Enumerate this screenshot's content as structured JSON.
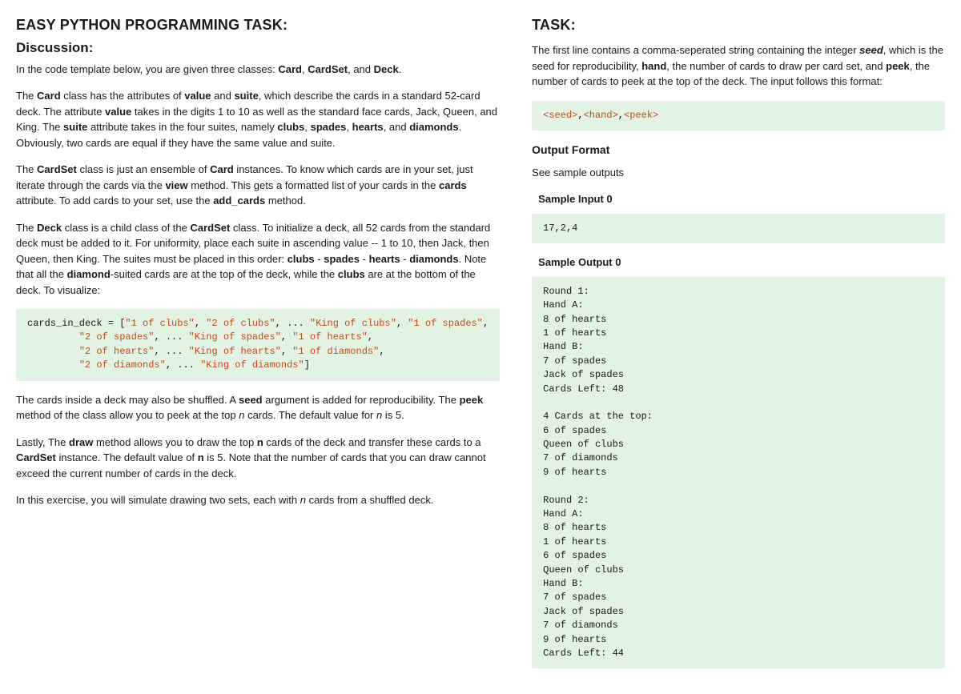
{
  "left": {
    "heading_main": "EASY PYTHON PROGRAMMING TASK:",
    "heading_sub": "Discussion:",
    "p1_pre": "In the code template below, you are given three classes: ",
    "p1_c1": "Card",
    "p1_s1": ", ",
    "p1_c2": "CardSet",
    "p1_s2": ", and ",
    "p1_c3": "Deck",
    "p1_post": ".",
    "p2_a": "The ",
    "p2_b1": "Card",
    "p2_b": " class has the attributes of ",
    "p2_b2": "value",
    "p2_c": " and ",
    "p2_b3": "suite",
    "p2_d": ", which describe the cards in a standard 52-card deck. The attribute ",
    "p2_b4": "value",
    "p2_e": " takes in the digits 1 to 10 as well as the standard face cards, Jack, Queen, and King. The ",
    "p2_b5": "suite",
    "p2_f": " attribute takes in the four suites, namely ",
    "p2_b6": "clubs",
    "p2_s1": ", ",
    "p2_b7": "spades",
    "p2_s2": ", ",
    "p2_b8": "hearts",
    "p2_s3": ", and ",
    "p2_b9": "diamonds",
    "p2_g": ". Obviously, two cards are equal if they have the same value and suite.",
    "p3_a": "The ",
    "p3_b1": "CardSet",
    "p3_b": " class is just an ensemble of ",
    "p3_b2": "Card",
    "p3_c": " instances. To know which cards are in your set, just iterate through the cards via the ",
    "p3_b3": "view",
    "p3_d": " method. This gets a formatted list of your cards in the ",
    "p3_b4": "cards",
    "p3_e": " attribute. To add cards to your set, use the ",
    "p3_b5": "add_cards",
    "p3_f": " method.",
    "p4_a": "The ",
    "p4_b1": "Deck",
    "p4_b": " class is a child class of the ",
    "p4_b2": "CardSet",
    "p4_c": " class. To initialize a deck, all 52 cards from the standard deck must be added to it. For uniformity, place each suite in ascending value -- 1 to 10, then Jack, then Queen, then King. The suites must be placed in this order: ",
    "p4_b3": "clubs",
    "p4_s1": " - ",
    "p4_b4": "spades",
    "p4_s2": " - ",
    "p4_b5": "hearts",
    "p4_s3": " - ",
    "p4_b6": "diamonds",
    "p4_d": ". Note that all the ",
    "p4_b7": "diamond",
    "p4_e": "-suited cards are at the top of the deck, while the ",
    "p4_b8": "clubs",
    "p4_f": " are at the bottom of the deck. To visualize:",
    "code1": {
      "l1a": "cards_in_deck = [",
      "l1b": "\"1 of clubs\"",
      "l1c": ", ",
      "l1d": "\"2 of clubs\"",
      "l1e": ", ... ",
      "l1f": "\"King of clubs\"",
      "l1g": ", ",
      "l1h": "\"1 of spades\"",
      "l1i": ",",
      "l2_indent": "         ",
      "l2a": "\"2 of spades\"",
      "l2b": ", ... ",
      "l2c": "\"King of spades\"",
      "l2d": ", ",
      "l2e": "\"1 of hearts\"",
      "l2f": ",",
      "l3a": "\"2 of hearts\"",
      "l3b": ", ... ",
      "l3c": "\"King of hearts\"",
      "l3d": ", ",
      "l3e": "\"1 of diamonds\"",
      "l3f": ",",
      "l4a": "\"2 of diamonds\"",
      "l4b": ", ... ",
      "l4c": "\"King of diamonds\"",
      "l4d": "]"
    },
    "p5_a": "The cards inside a deck may also be shuffled. A ",
    "p5_b1": "seed",
    "p5_b": " argument is added for reproducibility. The ",
    "p5_b2": "peek",
    "p5_c": " method of the class allow you to peek at the top ",
    "p5_i1": "n",
    "p5_d": " cards. The default value for ",
    "p5_i2": "n",
    "p5_e": " is 5.",
    "p6_a": "Lastly, The ",
    "p6_b1": "draw",
    "p6_b": " method allows you to draw the top ",
    "p6_b2": "n",
    "p6_c": " cards of the deck and transfer these cards to a ",
    "p6_b3": "CardSet",
    "p6_d": " instance. The default value of ",
    "p6_b4": "n",
    "p6_e": " is 5. Note that the number of cards that you can draw cannot exceed the current number of cards in the deck.",
    "p7_a": "In this exercise, you will simulate drawing two sets, each with ",
    "p7_i1": "n",
    "p7_b": " cards from a shuffled deck."
  },
  "right": {
    "heading": "TASK:",
    "p1_a": "The first line contains a comma-seperated string containing the integer ",
    "p1_bi1": "seed",
    "p1_b": ", which is the seed for reproducibility, ",
    "p1_b2": "hand",
    "p1_c": ", the number of cards to draw per card set, and ",
    "p1_b3": "peek",
    "p1_d": ", the number of cards to peek at the top of the deck. The input follows this format:",
    "code_input_a": "<seed>",
    "code_input_s1": ",",
    "code_input_b": "<hand>",
    "code_input_s2": ",",
    "code_input_c": "<peek>",
    "h_output": "Output Format",
    "p_output": "See sample outputs",
    "h_sample_in": "Sample Input 0",
    "sample_in": "17,2,4",
    "h_sample_out": "Sample Output 0",
    "sample_out": "Round 1:\nHand A:\n8 of hearts\n1 of hearts\nHand B:\n7 of spades\nJack of spades\nCards Left: 48\n\n4 Cards at the top:\n6 of spades\nQueen of clubs\n7 of diamonds\n9 of hearts\n\nRound 2:\nHand A:\n8 of hearts\n1 of hearts\n6 of spades\nQueen of clubs\nHand B:\n7 of spades\nJack of spades\n7 of diamonds\n9 of hearts\nCards Left: 44"
  },
  "colors": {
    "code_bg": "#e2f3e3",
    "code_string": "#c9481d",
    "text": "#1a1a1a"
  }
}
